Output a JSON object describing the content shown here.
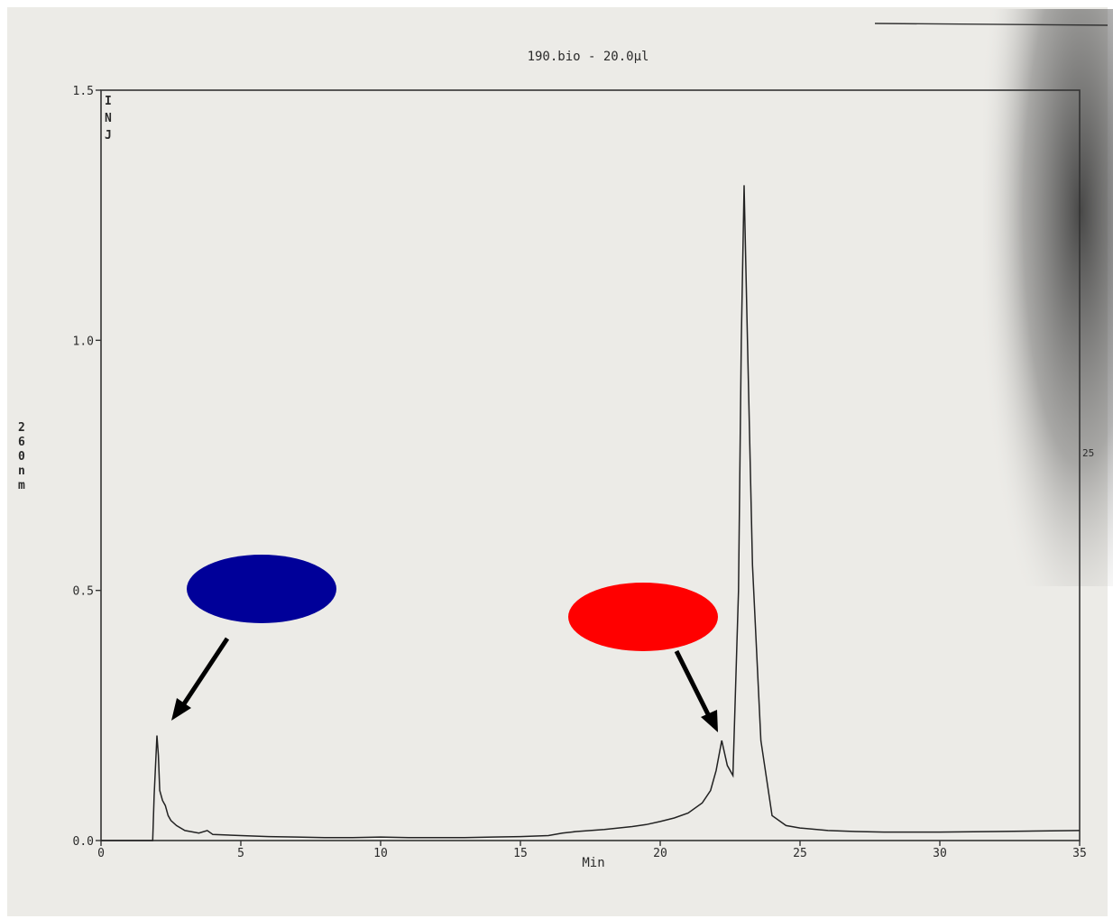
{
  "chart_data": {
    "type": "line",
    "title": "190.bio - 20.0µl",
    "xlabel": "Min",
    "ylabel": "260nm",
    "xlim": [
      0,
      35
    ],
    "ylim": [
      0,
      1.5
    ],
    "x_ticks": [
      "0",
      "5",
      "10",
      "15",
      "20",
      "25",
      "30",
      "35"
    ],
    "y_ticks": [
      "0.0",
      "0.5",
      "1.0",
      "1.5"
    ],
    "injection_marker": "INJ",
    "right_edge_mark": "25",
    "grid": false,
    "series": [
      {
        "x": [
          0,
          1.85,
          1.9,
          2.0,
          2.05,
          2.1,
          2.2,
          2.3,
          2.4,
          2.5,
          2.7,
          3.0,
          3.5,
          3.8,
          4.0,
          5.0,
          6.0,
          7.0,
          8.0,
          9.0,
          10.0,
          11.0,
          12.0,
          13.0,
          14.0,
          15.0,
          16.0,
          16.5,
          17.0,
          17.5,
          18.0,
          18.5,
          19.0,
          19.5,
          20.0,
          20.5,
          21.0,
          21.5,
          21.8,
          22.0,
          22.2,
          22.4,
          22.6,
          22.8,
          22.9,
          23.0,
          23.1,
          23.3,
          23.6,
          24.0,
          24.5,
          25.0,
          26.0,
          27.0,
          28.0,
          30.0,
          32.0,
          35.0
        ],
        "values": [
          0.0,
          0.0,
          0.09,
          0.21,
          0.17,
          0.1,
          0.08,
          0.07,
          0.05,
          0.04,
          0.03,
          0.02,
          0.015,
          0.02,
          0.012,
          0.01,
          0.008,
          0.007,
          0.006,
          0.006,
          0.007,
          0.006,
          0.006,
          0.006,
          0.007,
          0.008,
          0.01,
          0.015,
          0.018,
          0.02,
          0.022,
          0.025,
          0.028,
          0.032,
          0.038,
          0.045,
          0.055,
          0.075,
          0.1,
          0.14,
          0.2,
          0.15,
          0.13,
          0.5,
          1.0,
          1.31,
          1.05,
          0.55,
          0.2,
          0.05,
          0.03,
          0.025,
          0.02,
          0.018,
          0.017,
          0.017,
          0.018,
          0.02
        ]
      }
    ]
  },
  "annotations": {
    "blue_marker_color": "#000099",
    "red_marker_color": "#ff0000",
    "arrow_color": "#000000"
  }
}
